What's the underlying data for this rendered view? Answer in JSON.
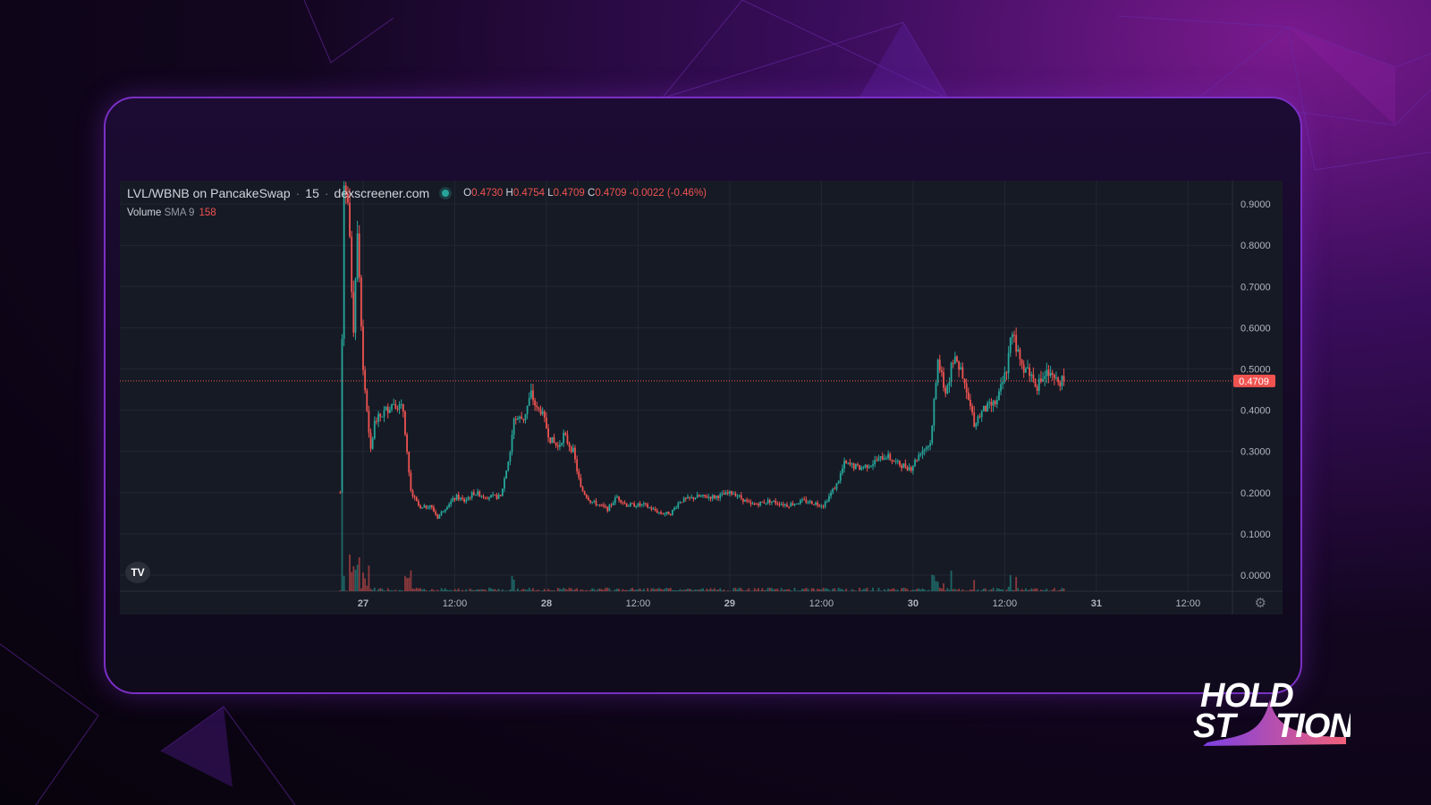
{
  "header": {
    "pair": "LVL/WBNB on PancakeSwap",
    "interval": "15",
    "source": "dexscreener.com",
    "ohlc": {
      "o_label": "O",
      "o": "0.4730",
      "h_label": "H",
      "h": "0.4754",
      "l_label": "L",
      "l": "0.4709",
      "c_label": "C",
      "c": "0.4709",
      "change": "-0.0022 (-0.46%)"
    },
    "volume_label": "Volume",
    "sma_label": "SMA 9",
    "sma_value": "158"
  },
  "logo_text": "HOLD STATION",
  "tv_logo": "TV",
  "icons": [
    "tradingview-logo-icon",
    "gear-icon",
    "status-dot-icon"
  ],
  "colors": {
    "up": "#26a69a",
    "down": "#ef5350",
    "background": "#161a25",
    "accent": "#7b2fc4"
  },
  "chart_data": {
    "type": "candlestick",
    "interval": "15",
    "current_price": "0.4709",
    "ylim": [
      0,
      0.95
    ],
    "y_ticks": [
      "0.9000",
      "0.8000",
      "0.7000",
      "0.6000",
      "0.5000",
      "0.4000",
      "0.3000",
      "0.2000",
      "0.1000",
      "0.0000"
    ],
    "x_ticks": [
      "27",
      "12:00",
      "28",
      "12:00",
      "29",
      "12:00",
      "30",
      "12:00",
      "31",
      "12:00"
    ],
    "grid": true,
    "price_path": [
      [
        "26 21:00",
        0.2
      ],
      [
        "26 21:30",
        0.95
      ],
      [
        "26 22:00",
        0.9
      ],
      [
        "26 22:45",
        0.6
      ],
      [
        "26 23:15",
        0.85
      ],
      [
        "27 00:00",
        0.5
      ],
      [
        "27 00:30",
        0.4
      ],
      [
        "27 01:00",
        0.3
      ],
      [
        "27 01:30",
        0.37
      ],
      [
        "27 03:00",
        0.4
      ],
      [
        "27 04:00",
        0.42
      ],
      [
        "27 05:15",
        0.4
      ],
      [
        "27 05:45",
        0.3
      ],
      [
        "27 06:15",
        0.2
      ],
      [
        "27 07:30",
        0.16
      ],
      [
        "27 08:45",
        0.17
      ],
      [
        "27 09:45",
        0.14
      ],
      [
        "27 11:00",
        0.17
      ],
      [
        "27 12:15",
        0.19
      ],
      [
        "27 13:15",
        0.18
      ],
      [
        "27 14:30",
        0.2
      ],
      [
        "27 16:15",
        0.19
      ],
      [
        "27 18:00",
        0.19
      ],
      [
        "27 19:15",
        0.3
      ],
      [
        "27 19:45",
        0.38
      ],
      [
        "27 21:00",
        0.38
      ],
      [
        "27 22:00",
        0.44
      ],
      [
        "27 22:45",
        0.4
      ],
      [
        "27 23:15",
        0.4
      ],
      [
        "28 00:30",
        0.33
      ],
      [
        "28 01:30",
        0.31
      ],
      [
        "28 02:15",
        0.34
      ],
      [
        "28 03:30",
        0.3
      ],
      [
        "28 04:30",
        0.21
      ],
      [
        "28 05:45",
        0.18
      ],
      [
        "28 08:00",
        0.16
      ],
      [
        "28 09:15",
        0.19
      ],
      [
        "28 10:30",
        0.17
      ],
      [
        "28 12:45",
        0.17
      ],
      [
        "28 15:00",
        0.15
      ],
      [
        "28 16:15",
        0.15
      ],
      [
        "28 17:30",
        0.18
      ],
      [
        "28 19:45",
        0.19
      ],
      [
        "28 22:00",
        0.19
      ],
      [
        "29 00:30",
        0.2
      ],
      [
        "29 02:45",
        0.17
      ],
      [
        "29 05:15",
        0.18
      ],
      [
        "29 07:30",
        0.17
      ],
      [
        "29 09:45",
        0.18
      ],
      [
        "29 12:15",
        0.17
      ],
      [
        "29 14:00",
        0.22
      ],
      [
        "29 15:00",
        0.27
      ],
      [
        "29 17:00",
        0.26
      ],
      [
        "29 18:30",
        0.27
      ],
      [
        "29 20:30",
        0.29
      ],
      [
        "29 22:00",
        0.27
      ],
      [
        "29 23:45",
        0.26
      ],
      [
        "30 01:00",
        0.3
      ],
      [
        "30 02:15",
        0.32
      ],
      [
        "30 03:15",
        0.52
      ],
      [
        "30 04:15",
        0.44
      ],
      [
        "30 05:30",
        0.54
      ],
      [
        "30 07:00",
        0.44
      ],
      [
        "30 08:00",
        0.37
      ],
      [
        "30 09:15",
        0.4
      ],
      [
        "30 11:00",
        0.42
      ],
      [
        "30 12:15",
        0.5
      ],
      [
        "30 13:00",
        0.6
      ],
      [
        "30 14:00",
        0.51
      ],
      [
        "30 15:00",
        0.5
      ],
      [
        "30 16:15",
        0.46
      ],
      [
        "30 17:30",
        0.49
      ],
      [
        "30 18:30",
        0.47
      ],
      [
        "30 19:45",
        0.4709
      ]
    ]
  }
}
